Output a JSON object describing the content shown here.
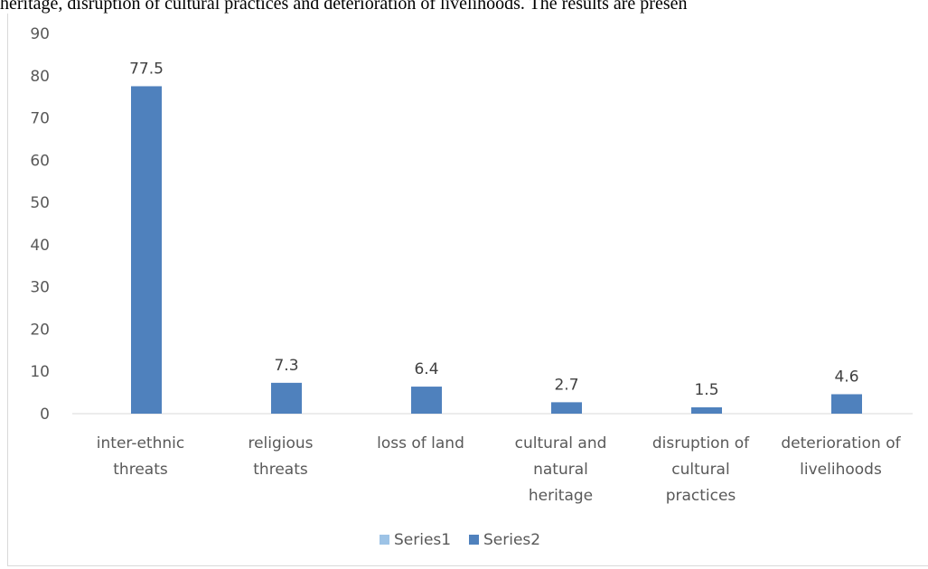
{
  "caption": "heritage, disruption of cultural practices and deterioration of livelihoods. The results are presen",
  "colors": {
    "series1": "#9dc3e6",
    "series2": "#4f81bd",
    "axis_text": "#595959",
    "axis_line": "#d9d9d9"
  },
  "chart_data": {
    "type": "bar",
    "categories": [
      [
        "inter-ethnic",
        "threats"
      ],
      [
        "religious",
        "threats"
      ],
      [
        "loss of land"
      ],
      [
        "cultural and",
        "natural",
        "heritage"
      ],
      [
        "disruption of",
        "cultural",
        "practices"
      ],
      [
        "deterioration of",
        "livelihoods"
      ]
    ],
    "series": [
      {
        "name": "Series1",
        "values": [
          null,
          null,
          null,
          null,
          null,
          null
        ]
      },
      {
        "name": "Series2",
        "values": [
          77.5,
          7.3,
          6.4,
          2.7,
          1.5,
          4.6
        ]
      }
    ],
    "data_labels": [
      "77.5",
      "7.3",
      "6.4",
      "2.7",
      "1.5",
      "4.6"
    ],
    "ylim": [
      0,
      90
    ],
    "yticks": [
      0,
      10,
      20,
      30,
      40,
      50,
      60,
      70,
      80,
      90
    ],
    "grid": false,
    "legend": "bottom-center"
  }
}
